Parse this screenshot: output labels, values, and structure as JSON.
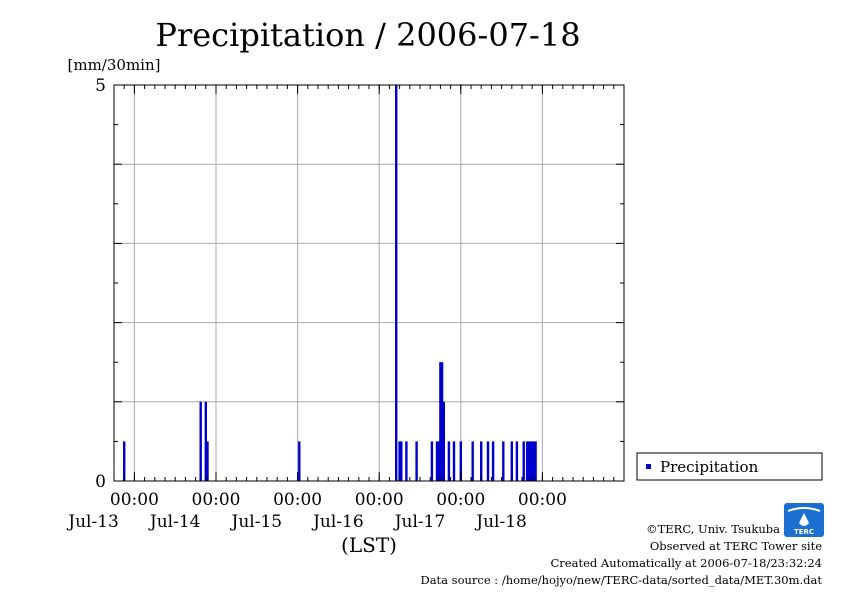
{
  "colors": {
    "bar": "#0000cc",
    "grid": "#aaaaaa",
    "axis": "#000000"
  },
  "credits": {
    "copyright": "©TERC, Univ. Tsukuba",
    "observed": "Observed at TERC Tower site",
    "created": "Created Automatically at 2006-07-18/23:32:24",
    "source": "Data source : /home/hojyo/new/TERC-data/sorted_data/MET.30m.dat"
  },
  "logo": {
    "text": "TERC",
    "icon": "terc-logo-icon"
  },
  "chart_data": {
    "type": "bar",
    "title": "Precipitation / 2006-07-18",
    "ylabel": "[mm/30min]",
    "xlabel": "(LST)",
    "ylim": [
      0,
      5
    ],
    "yticks": [
      0,
      5
    ],
    "xlim": [
      "2006-07-12 18:00",
      "2006-07-19 00:00"
    ],
    "grid": true,
    "legend": {
      "position": "right",
      "entries": [
        "Precipitation"
      ]
    },
    "time_tick_labels": [
      {
        "t": "2006-07-13 00:00",
        "label": "00:00"
      },
      {
        "t": "2006-07-14 00:00",
        "label": "00:00"
      },
      {
        "t": "2006-07-15 00:00",
        "label": "00:00"
      },
      {
        "t": "2006-07-16 00:00",
        "label": "00:00"
      },
      {
        "t": "2006-07-17 00:00",
        "label": "00:00"
      },
      {
        "t": "2006-07-18 00:00",
        "label": "00:00"
      }
    ],
    "date_labels": [
      {
        "t": "2006-07-12 12:00",
        "label": "Jul-13"
      },
      {
        "t": "2006-07-13 12:00",
        "label": "Jul-14"
      },
      {
        "t": "2006-07-14 12:00",
        "label": "Jul-15"
      },
      {
        "t": "2006-07-15 12:00",
        "label": "Jul-16"
      },
      {
        "t": "2006-07-16 12:00",
        "label": "Jul-17"
      },
      {
        "t": "2006-07-17 12:00",
        "label": "Jul-18"
      }
    ],
    "series": [
      {
        "name": "Precipitation",
        "points": [
          {
            "t": "2006-07-12 21:00",
            "v": 0.5
          },
          {
            "t": "2006-07-13 19:30",
            "v": 1.0
          },
          {
            "t": "2006-07-13 21:00",
            "v": 1.0
          },
          {
            "t": "2006-07-13 21:30",
            "v": 0.5
          },
          {
            "t": "2006-07-15 00:30",
            "v": 0.5
          },
          {
            "t": "2006-07-16 05:00",
            "v": 5.0
          },
          {
            "t": "2006-07-16 06:00",
            "v": 0.5
          },
          {
            "t": "2006-07-16 06:30",
            "v": 0.5
          },
          {
            "t": "2006-07-16 08:00",
            "v": 0.5
          },
          {
            "t": "2006-07-16 11:00",
            "v": 0.5
          },
          {
            "t": "2006-07-16 15:30",
            "v": 0.5
          },
          {
            "t": "2006-07-16 17:00",
            "v": 0.5
          },
          {
            "t": "2006-07-16 17:30",
            "v": 0.5
          },
          {
            "t": "2006-07-16 18:00",
            "v": 1.5
          },
          {
            "t": "2006-07-16 18:30",
            "v": 1.5
          },
          {
            "t": "2006-07-16 19:00",
            "v": 1.0
          },
          {
            "t": "2006-07-16 20:30",
            "v": 0.5
          },
          {
            "t": "2006-07-16 22:00",
            "v": 0.5
          },
          {
            "t": "2006-07-17 00:00",
            "v": 0.5
          },
          {
            "t": "2006-07-17 03:30",
            "v": 0.5
          },
          {
            "t": "2006-07-17 06:00",
            "v": 0.5
          },
          {
            "t": "2006-07-17 08:00",
            "v": 0.5
          },
          {
            "t": "2006-07-17 09:30",
            "v": 0.5
          },
          {
            "t": "2006-07-17 12:30",
            "v": 0.5
          },
          {
            "t": "2006-07-17 15:00",
            "v": 0.5
          },
          {
            "t": "2006-07-17 16:30",
            "v": 0.5
          },
          {
            "t": "2006-07-17 18:30",
            "v": 0.5
          },
          {
            "t": "2006-07-17 19:30",
            "v": 0.5
          },
          {
            "t": "2006-07-17 20:00",
            "v": 0.5
          },
          {
            "t": "2006-07-17 20:30",
            "v": 0.5
          },
          {
            "t": "2006-07-17 21:00",
            "v": 0.5
          },
          {
            "t": "2006-07-17 21:30",
            "v": 0.5
          },
          {
            "t": "2006-07-17 22:00",
            "v": 0.5
          }
        ]
      }
    ]
  }
}
